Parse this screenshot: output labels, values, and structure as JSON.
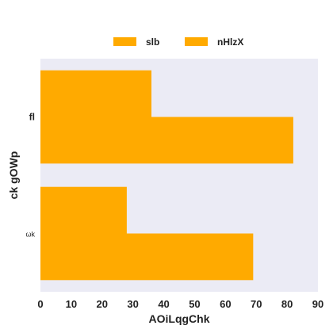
{
  "chart_data": {
    "type": "bar",
    "orientation": "horizontal",
    "categories": [
      "fl",
      "ωk"
    ],
    "series": [
      {
        "name": "slb",
        "values": [
          36,
          28
        ],
        "color": "#FFAA00"
      },
      {
        "name": "nHlzX",
        "values": [
          82,
          69
        ],
        "color": "#FFAA00"
      }
    ],
    "xlabel": "AOiLqgChk",
    "ylabel": "ck gOWp",
    "xlim": [
      0,
      90
    ],
    "xticks": [
      0,
      10,
      20,
      30,
      40,
      50,
      60,
      70,
      80,
      90
    ],
    "grid": false,
    "legend": "top-center",
    "plot_background": "#EBEBF5"
  }
}
